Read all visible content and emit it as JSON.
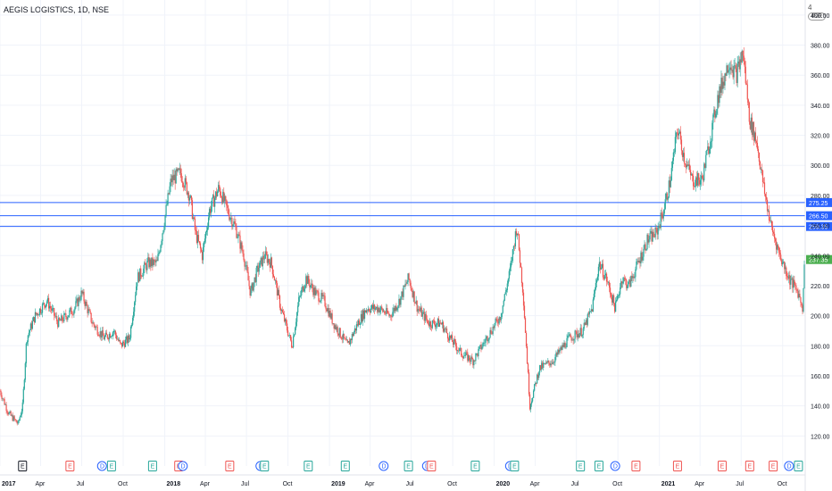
{
  "header": {
    "symbol_line": "AEGIS LOGISTICS, 1D, NSE",
    "scale_marker": "4",
    "scale_pill": "INR"
  },
  "colors": {
    "up": "#26a69a",
    "down": "#ef5350",
    "hline": "#2962ff",
    "last_price": "#4caf50",
    "grid": "#f0f3fa",
    "axis_text": "#131722",
    "earnings": "#ef5350",
    "earnings_alt": "#26a69a",
    "dividend": "#2962ff",
    "split": "#131722"
  },
  "chart_data": {
    "type": "candlestick",
    "title": "AEGIS LOGISTICS, 1D, NSE",
    "x_range": [
      "2017-01-01",
      "2021-11-20"
    ],
    "ylim": [
      100,
      410
    ],
    "y_ticks": [
      120,
      140,
      160,
      180,
      200,
      220,
      240,
      260,
      280,
      300,
      320,
      340,
      360,
      380,
      400
    ],
    "y_tick_labels": [
      "120.00",
      "140.00",
      "160.00",
      "180.00",
      "200.00",
      "220.00",
      "240.00",
      "260.00",
      "280.00",
      "300.00",
      "320.00",
      "340.00",
      "360.00",
      "380.00",
      "400.00"
    ],
    "x_ticks": [
      {
        "date": "2017-01-01",
        "label": "2017"
      },
      {
        "date": "2017-04-01",
        "label": "Apr"
      },
      {
        "date": "2017-07-01",
        "label": "Jul"
      },
      {
        "date": "2017-10-01",
        "label": "Oct"
      },
      {
        "date": "2018-01-01",
        "label": "2018"
      },
      {
        "date": "2018-04-01",
        "label": "Apr"
      },
      {
        "date": "2018-07-01",
        "label": "Jul"
      },
      {
        "date": "2018-10-01",
        "label": "Oct"
      },
      {
        "date": "2019-01-01",
        "label": "2019"
      },
      {
        "date": "2019-04-01",
        "label": "Apr"
      },
      {
        "date": "2019-07-01",
        "label": "Jul"
      },
      {
        "date": "2019-10-01",
        "label": "Oct"
      },
      {
        "date": "2020-01-01",
        "label": "2020"
      },
      {
        "date": "2020-04-01",
        "label": "Apr"
      },
      {
        "date": "2020-07-01",
        "label": "Jul"
      },
      {
        "date": "2020-10-01",
        "label": "Oct"
      },
      {
        "date": "2021-01-01",
        "label": "2021"
      },
      {
        "date": "2021-04-01",
        "label": "Apr"
      },
      {
        "date": "2021-07-01",
        "label": "Jul"
      },
      {
        "date": "2021-10-01",
        "label": "Oct"
      }
    ],
    "price_path": [
      [
        "2017-01-01",
        150
      ],
      [
        "2017-01-20",
        135
      ],
      [
        "2017-02-10",
        128
      ],
      [
        "2017-02-20",
        140
      ],
      [
        "2017-03-01",
        185
      ],
      [
        "2017-03-20",
        200
      ],
      [
        "2017-04-15",
        210
      ],
      [
        "2017-05-10",
        195
      ],
      [
        "2017-06-15",
        205
      ],
      [
        "2017-07-01",
        215
      ],
      [
        "2017-07-25",
        195
      ],
      [
        "2017-08-20",
        185
      ],
      [
        "2017-09-10",
        190
      ],
      [
        "2017-09-25",
        180
      ],
      [
        "2017-10-15",
        185
      ],
      [
        "2017-11-01",
        225
      ],
      [
        "2017-11-25",
        235
      ],
      [
        "2017-12-15",
        235
      ],
      [
        "2018-01-01",
        265
      ],
      [
        "2018-01-15",
        290
      ],
      [
        "2018-02-05",
        295
      ],
      [
        "2018-02-25",
        280
      ],
      [
        "2018-03-10",
        255
      ],
      [
        "2018-03-25",
        240
      ],
      [
        "2018-04-10",
        270
      ],
      [
        "2018-05-01",
        285
      ],
      [
        "2018-05-20",
        270
      ],
      [
        "2018-06-05",
        260
      ],
      [
        "2018-06-25",
        240
      ],
      [
        "2018-07-10",
        215
      ],
      [
        "2018-07-25",
        230
      ],
      [
        "2018-08-10",
        240
      ],
      [
        "2018-08-25",
        235
      ],
      [
        "2018-09-15",
        205
      ],
      [
        "2018-10-10",
        180
      ],
      [
        "2018-10-25",
        210
      ],
      [
        "2018-11-10",
        225
      ],
      [
        "2018-12-01",
        215
      ],
      [
        "2018-12-20",
        210
      ],
      [
        "2019-01-10",
        195
      ],
      [
        "2019-02-10",
        180
      ],
      [
        "2019-03-05",
        195
      ],
      [
        "2019-03-25",
        205
      ],
      [
        "2019-04-20",
        205
      ],
      [
        "2019-05-15",
        200
      ],
      [
        "2019-06-05",
        210
      ],
      [
        "2019-06-25",
        225
      ],
      [
        "2019-07-15",
        205
      ],
      [
        "2019-08-10",
        195
      ],
      [
        "2019-09-05",
        195
      ],
      [
        "2019-09-25",
        185
      ],
      [
        "2019-10-20",
        175
      ],
      [
        "2019-11-15",
        170
      ],
      [
        "2019-12-05",
        180
      ],
      [
        "2019-12-25",
        190
      ],
      [
        "2020-01-15",
        200
      ],
      [
        "2020-02-05",
        230
      ],
      [
        "2020-02-20",
        260
      ],
      [
        "2020-03-05",
        215
      ],
      [
        "2020-03-20",
        140
      ],
      [
        "2020-04-10",
        165
      ],
      [
        "2020-05-10",
        170
      ],
      [
        "2020-06-15",
        185
      ],
      [
        "2020-07-15",
        190
      ],
      [
        "2020-08-05",
        205
      ],
      [
        "2020-08-20",
        235
      ],
      [
        "2020-09-05",
        225
      ],
      [
        "2020-09-25",
        205
      ],
      [
        "2020-10-10",
        225
      ],
      [
        "2020-10-25",
        220
      ],
      [
        "2020-11-15",
        235
      ],
      [
        "2020-12-05",
        250
      ],
      [
        "2020-12-25",
        255
      ],
      [
        "2021-01-10",
        270
      ],
      [
        "2021-01-25",
        290
      ],
      [
        "2021-02-10",
        325
      ],
      [
        "2021-02-25",
        305
      ],
      [
        "2021-03-15",
        290
      ],
      [
        "2021-04-05",
        290
      ],
      [
        "2021-04-25",
        320
      ],
      [
        "2021-05-10",
        345
      ],
      [
        "2021-06-05",
        370
      ],
      [
        "2021-06-20",
        360
      ],
      [
        "2021-07-05",
        375
      ],
      [
        "2021-07-20",
        330
      ],
      [
        "2021-08-05",
        315
      ],
      [
        "2021-08-20",
        285
      ],
      [
        "2021-09-05",
        260
      ],
      [
        "2021-09-25",
        240
      ],
      [
        "2021-10-15",
        225
      ],
      [
        "2021-11-05",
        215
      ],
      [
        "2021-11-15",
        205
      ],
      [
        "2021-11-18",
        237.35
      ]
    ],
    "horizontal_lines": [
      {
        "value": 275.25,
        "label": "275.25"
      },
      {
        "value": 266.5,
        "label": "266.50"
      },
      {
        "value": 259.35,
        "label": "259.35"
      }
    ],
    "last_price": {
      "value": 237.35,
      "label": "237.35"
    },
    "events": [
      {
        "date": "2017-02-20",
        "glyph": "E",
        "kind": "split"
      },
      {
        "date": "2017-06-05",
        "glyph": "E",
        "kind": "earnings"
      },
      {
        "date": "2017-08-15",
        "glyph": "D",
        "kind": "dividend"
      },
      {
        "date": "2017-09-05",
        "glyph": "E",
        "kind": "earnings_alt"
      },
      {
        "date": "2017-12-05",
        "glyph": "E",
        "kind": "earnings_alt"
      },
      {
        "date": "2018-02-01",
        "glyph": "E",
        "kind": "earnings"
      },
      {
        "date": "2018-02-10",
        "glyph": "D",
        "kind": "dividend"
      },
      {
        "date": "2018-05-25",
        "glyph": "E",
        "kind": "earnings"
      },
      {
        "date": "2018-08-01",
        "glyph": "D",
        "kind": "dividend"
      },
      {
        "date": "2018-08-10",
        "glyph": "E",
        "kind": "earnings_alt"
      },
      {
        "date": "2018-11-15",
        "glyph": "E",
        "kind": "earnings_alt"
      },
      {
        "date": "2019-02-05",
        "glyph": "E",
        "kind": "earnings_alt"
      },
      {
        "date": "2019-05-01",
        "glyph": "D",
        "kind": "dividend"
      },
      {
        "date": "2019-06-25",
        "glyph": "E",
        "kind": "earnings_alt"
      },
      {
        "date": "2019-08-05",
        "glyph": "D",
        "kind": "dividend"
      },
      {
        "date": "2019-08-15",
        "glyph": "E",
        "kind": "earnings"
      },
      {
        "date": "2019-11-20",
        "glyph": "E",
        "kind": "earnings_alt"
      },
      {
        "date": "2020-02-05",
        "glyph": "D",
        "kind": "dividend"
      },
      {
        "date": "2020-02-15",
        "glyph": "E",
        "kind": "earnings_alt"
      },
      {
        "date": "2020-07-10",
        "glyph": "E",
        "kind": "earnings_alt"
      },
      {
        "date": "2020-08-20",
        "glyph": "E",
        "kind": "earnings_alt"
      },
      {
        "date": "2020-09-25",
        "glyph": "D",
        "kind": "dividend"
      },
      {
        "date": "2020-11-10",
        "glyph": "E",
        "kind": "earnings"
      },
      {
        "date": "2021-02-10",
        "glyph": "E",
        "kind": "earnings"
      },
      {
        "date": "2021-05-20",
        "glyph": "E",
        "kind": "earnings"
      },
      {
        "date": "2021-07-20",
        "glyph": "E",
        "kind": "earnings"
      },
      {
        "date": "2021-09-10",
        "glyph": "E",
        "kind": "earnings"
      },
      {
        "date": "2021-10-15",
        "glyph": "D",
        "kind": "dividend"
      },
      {
        "date": "2021-11-05",
        "glyph": "E",
        "kind": "earnings_alt"
      }
    ],
    "grid": true
  }
}
